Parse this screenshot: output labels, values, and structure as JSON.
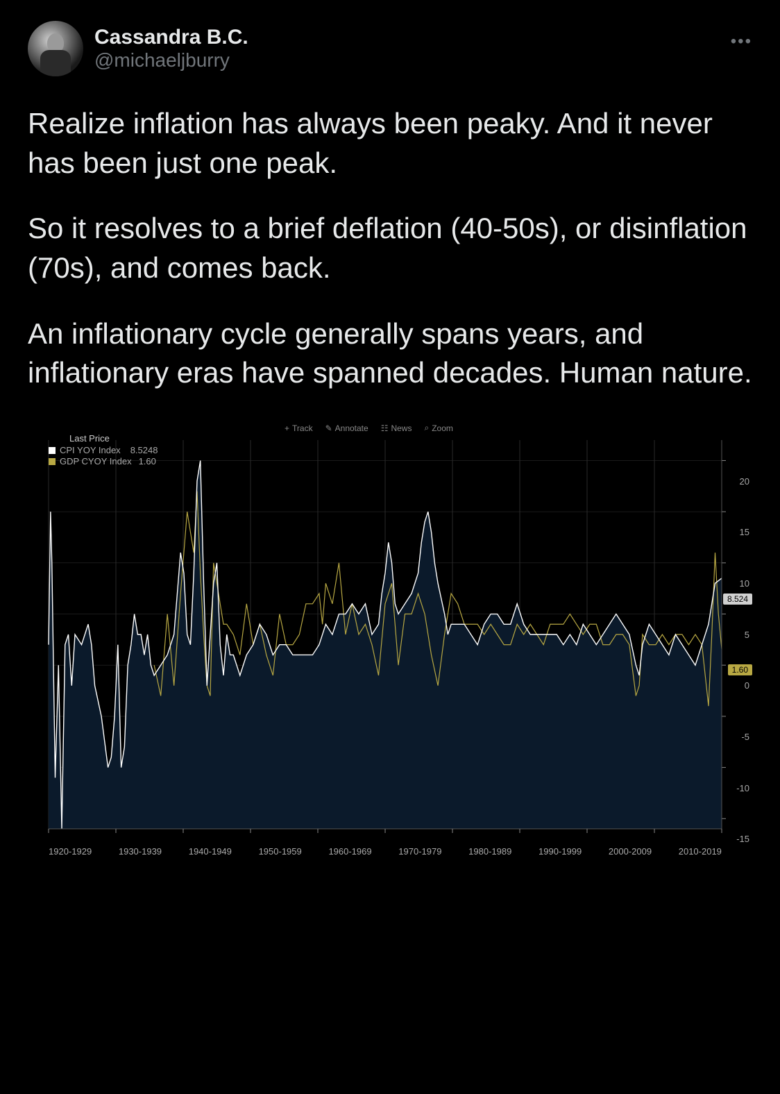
{
  "tweet": {
    "author": {
      "display_name": "Cassandra B.C.",
      "handle": "@michaeljburry"
    },
    "paragraphs": [
      "Realize inflation has always been peaky. And it never has been just one peak.",
      "So it resolves to a brief deflation (40-50s), or disinflation (70s), and comes back.",
      "An inflationary cycle generally spans years, and inflationary eras have spanned decades. Human nature."
    ]
  },
  "chart": {
    "type": "line",
    "background_color": "#000000",
    "plot_area_fill": "#0b1a2b",
    "grid_color": "#2a2a2a",
    "axis_text_color": "#aaaaaa",
    "toolbar": {
      "items": [
        "Track",
        "Annotate",
        "News",
        "Zoom"
      ],
      "icon_color": "#888888"
    },
    "legend": {
      "title": "Last Price",
      "rows": [
        {
          "label": "CPI YOY Index",
          "value": "8.5248",
          "color": "#ffffff"
        },
        {
          "label": "GDP CYOY Index",
          "value": "1.60",
          "color": "#b8a843"
        }
      ]
    },
    "y_axis": {
      "min": -16,
      "max": 22,
      "ticks": [
        -15,
        -10,
        -5,
        0,
        5,
        10,
        15,
        20
      ]
    },
    "markers": [
      {
        "value": 8.524,
        "label": "8.524",
        "bg": "#d0d0d0",
        "fg": "#000000"
      },
      {
        "value": 1.6,
        "label": "1.60",
        "bg": "#b8a843",
        "fg": "#000000"
      }
    ],
    "x_labels": [
      "1920-1929",
      "1930-1939",
      "1940-1949",
      "1950-1959",
      "1960-1969",
      "1970-1979",
      "1980-1989",
      "1990-1999",
      "2000-2009",
      "2010-2019"
    ],
    "series": {
      "cpi": {
        "color": "#ffffff",
        "width": 1.4,
        "data": [
          [
            0,
            2
          ],
          [
            0.3,
            15
          ],
          [
            0.5,
            10
          ],
          [
            1,
            -11
          ],
          [
            1.5,
            0
          ],
          [
            2,
            -16
          ],
          [
            2.5,
            2
          ],
          [
            3,
            3
          ],
          [
            3.5,
            -2
          ],
          [
            4,
            3
          ],
          [
            5,
            2
          ],
          [
            6,
            4
          ],
          [
            6.5,
            2
          ],
          [
            7,
            -2
          ],
          [
            8,
            -5
          ],
          [
            9,
            -10
          ],
          [
            9.5,
            -9
          ],
          [
            10,
            -5
          ],
          [
            10.5,
            2
          ],
          [
            11,
            -10
          ],
          [
            11.5,
            -8
          ],
          [
            12,
            0
          ],
          [
            12.5,
            2
          ],
          [
            13,
            5
          ],
          [
            13.5,
            3
          ],
          [
            14,
            3
          ],
          [
            14.5,
            1
          ],
          [
            15,
            3
          ],
          [
            15.5,
            0
          ],
          [
            16,
            -1
          ],
          [
            17,
            0
          ],
          [
            18,
            1
          ],
          [
            19,
            3
          ],
          [
            20,
            11
          ],
          [
            20.5,
            9
          ],
          [
            21,
            3
          ],
          [
            21.5,
            2
          ],
          [
            22,
            9
          ],
          [
            22.5,
            18
          ],
          [
            23,
            20
          ],
          [
            23.5,
            8
          ],
          [
            24,
            -2
          ],
          [
            24.5,
            3
          ],
          [
            25,
            8
          ],
          [
            25.5,
            10
          ],
          [
            26,
            2
          ],
          [
            26.5,
            -1
          ],
          [
            27,
            3
          ],
          [
            27.5,
            1
          ],
          [
            28,
            1
          ],
          [
            28.5,
            0
          ],
          [
            29,
            -1
          ],
          [
            30,
            1
          ],
          [
            31,
            2
          ],
          [
            32,
            4
          ],
          [
            33,
            3
          ],
          [
            34,
            1
          ],
          [
            35,
            2
          ],
          [
            36,
            2
          ],
          [
            37,
            1
          ],
          [
            38,
            1
          ],
          [
            39,
            1
          ],
          [
            40,
            1
          ],
          [
            41,
            2
          ],
          [
            42,
            4
          ],
          [
            43,
            3
          ],
          [
            44,
            5
          ],
          [
            45,
            5
          ],
          [
            46,
            6
          ],
          [
            47,
            5
          ],
          [
            48,
            6
          ],
          [
            49,
            3
          ],
          [
            50,
            4
          ],
          [
            50.5,
            7
          ],
          [
            51,
            9
          ],
          [
            51.5,
            12
          ],
          [
            52,
            10
          ],
          [
            52.5,
            6
          ],
          [
            53,
            5
          ],
          [
            54,
            6
          ],
          [
            55,
            7
          ],
          [
            56,
            9
          ],
          [
            56.5,
            12
          ],
          [
            57,
            14
          ],
          [
            57.5,
            15
          ],
          [
            58,
            13
          ],
          [
            58.5,
            10
          ],
          [
            59,
            8
          ],
          [
            60,
            5
          ],
          [
            60.5,
            3
          ],
          [
            61,
            4
          ],
          [
            62,
            4
          ],
          [
            63,
            4
          ],
          [
            64,
            3
          ],
          [
            65,
            2
          ],
          [
            66,
            4
          ],
          [
            67,
            5
          ],
          [
            68,
            5
          ],
          [
            69,
            4
          ],
          [
            70,
            4
          ],
          [
            71,
            6
          ],
          [
            72,
            4
          ],
          [
            73,
            3
          ],
          [
            74,
            3
          ],
          [
            75,
            3
          ],
          [
            76,
            3
          ],
          [
            77,
            3
          ],
          [
            78,
            2
          ],
          [
            79,
            3
          ],
          [
            80,
            2
          ],
          [
            81,
            4
          ],
          [
            82,
            3
          ],
          [
            83,
            2
          ],
          [
            84,
            3
          ],
          [
            85,
            4
          ],
          [
            86,
            5
          ],
          [
            87,
            4
          ],
          [
            88,
            3
          ],
          [
            89,
            0
          ],
          [
            89.5,
            -1
          ],
          [
            90,
            2
          ],
          [
            91,
            4
          ],
          [
            92,
            3
          ],
          [
            93,
            2
          ],
          [
            94,
            1
          ],
          [
            95,
            3
          ],
          [
            96,
            2
          ],
          [
            97,
            1
          ],
          [
            98,
            0
          ],
          [
            99,
            2
          ],
          [
            100,
            4
          ],
          [
            101,
            8
          ],
          [
            102,
            8.5
          ]
        ]
      },
      "gdp": {
        "color": "#b8a843",
        "width": 1.2,
        "data": [
          [
            16,
            0
          ],
          [
            17,
            -3
          ],
          [
            18,
            5
          ],
          [
            19,
            -2
          ],
          [
            20,
            7
          ],
          [
            21,
            15
          ],
          [
            22,
            11
          ],
          [
            22.5,
            17
          ],
          [
            23,
            9
          ],
          [
            23.5,
            3
          ],
          [
            24,
            -2
          ],
          [
            24.5,
            -3
          ],
          [
            25,
            10
          ],
          [
            26,
            6
          ],
          [
            26.5,
            4
          ],
          [
            27,
            4
          ],
          [
            28,
            3
          ],
          [
            29,
            1
          ],
          [
            30,
            6
          ],
          [
            31,
            2
          ],
          [
            32,
            4
          ],
          [
            33,
            1
          ],
          [
            34,
            -1
          ],
          [
            35,
            5
          ],
          [
            36,
            2
          ],
          [
            37,
            2
          ],
          [
            38,
            3
          ],
          [
            39,
            6
          ],
          [
            40,
            6
          ],
          [
            41,
            7
          ],
          [
            41.5,
            4
          ],
          [
            42,
            8
          ],
          [
            43,
            6
          ],
          [
            44,
            10
          ],
          [
            45,
            3
          ],
          [
            46,
            6
          ],
          [
            47,
            3
          ],
          [
            48,
            4
          ],
          [
            49,
            2
          ],
          [
            50,
            -1
          ],
          [
            51,
            6
          ],
          [
            52,
            8
          ],
          [
            53,
            0
          ],
          [
            54,
            5
          ],
          [
            55,
            5
          ],
          [
            56,
            7
          ],
          [
            57,
            5
          ],
          [
            58,
            1
          ],
          [
            59,
            -2
          ],
          [
            60,
            3
          ],
          [
            61,
            7
          ],
          [
            62,
            6
          ],
          [
            63,
            4
          ],
          [
            64,
            4
          ],
          [
            65,
            4
          ],
          [
            66,
            3
          ],
          [
            67,
            4
          ],
          [
            68,
            3
          ],
          [
            69,
            2
          ],
          [
            70,
            2
          ],
          [
            71,
            4
          ],
          [
            72,
            3
          ],
          [
            73,
            4
          ],
          [
            74,
            3
          ],
          [
            75,
            2
          ],
          [
            76,
            4
          ],
          [
            77,
            4
          ],
          [
            78,
            4
          ],
          [
            79,
            5
          ],
          [
            80,
            4
          ],
          [
            81,
            3
          ],
          [
            82,
            4
          ],
          [
            83,
            4
          ],
          [
            84,
            2
          ],
          [
            85,
            2
          ],
          [
            86,
            3
          ],
          [
            87,
            3
          ],
          [
            88,
            2
          ],
          [
            89,
            -3
          ],
          [
            89.5,
            -2
          ],
          [
            90,
            3
          ],
          [
            91,
            2
          ],
          [
            92,
            2
          ],
          [
            93,
            3
          ],
          [
            94,
            2
          ],
          [
            95,
            3
          ],
          [
            96,
            3
          ],
          [
            97,
            2
          ],
          [
            98,
            3
          ],
          [
            99,
            2
          ],
          [
            100,
            -4
          ],
          [
            100.5,
            3
          ],
          [
            101,
            11
          ],
          [
            101.5,
            5
          ],
          [
            102,
            1.6
          ]
        ]
      }
    }
  },
  "colors": {
    "background": "#000000",
    "text_primary": "#e7e9ea",
    "text_secondary": "#71767b"
  }
}
